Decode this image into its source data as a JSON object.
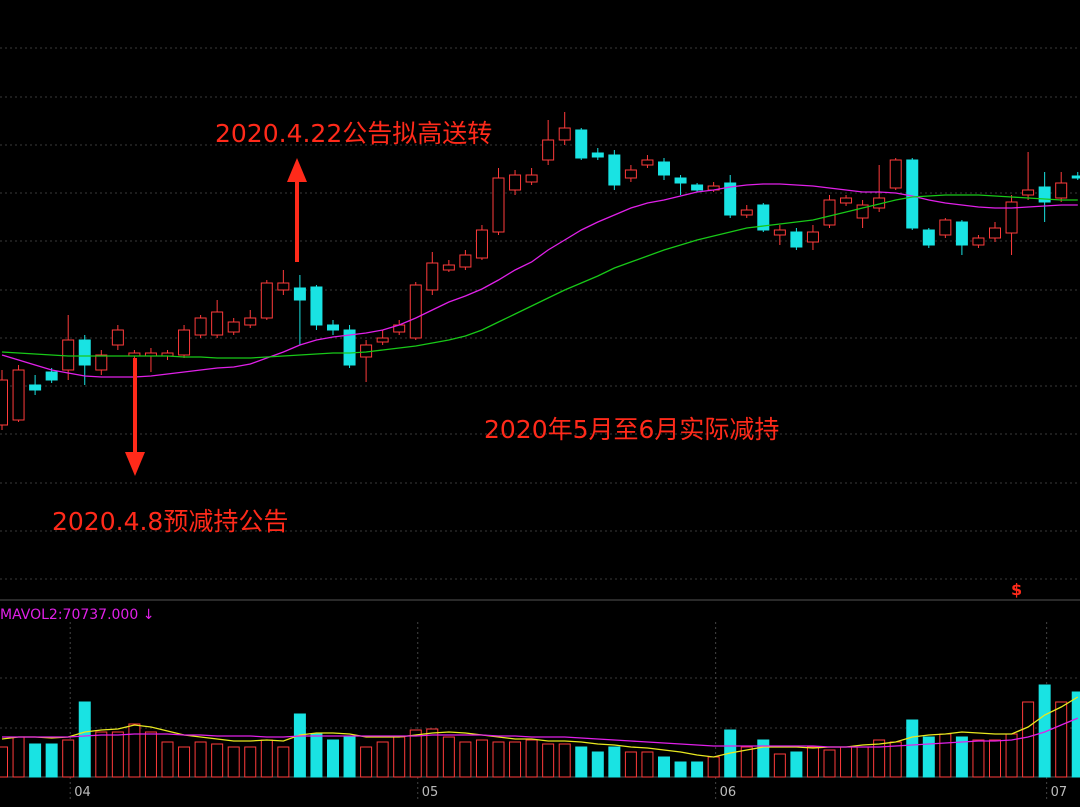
{
  "chart_data": {
    "type": "candlestick",
    "categories": [
      null,
      null,
      null,
      null,
      "04",
      null,
      null,
      null,
      null,
      null,
      null,
      null,
      null,
      null,
      null,
      null,
      null,
      null,
      null,
      null,
      null,
      null,
      null,
      null,
      null,
      "05",
      null,
      null,
      null,
      null,
      null,
      null,
      null,
      null,
      null,
      null,
      null,
      null,
      null,
      null,
      null,
      null,
      null,
      "06",
      null,
      null,
      null,
      null,
      null,
      null,
      null,
      null,
      null,
      null,
      null,
      null,
      null,
      null,
      null,
      null,
      null,
      null,
      null,
      "07",
      null,
      null
    ],
    "open": [
      17.5,
      18,
      21.5,
      22.8,
      23,
      26,
      23,
      25.5,
      24.4,
      24.4,
      24.4,
      24.5,
      26.5,
      26.5,
      26.8,
      27.5,
      28.2,
      31,
      31.2,
      31.3,
      27.5,
      27,
      24.3,
      25.8,
      26.8,
      26.2,
      31,
      33,
      33.3,
      34.2,
      36.8,
      41,
      41.8,
      44,
      46,
      47,
      44.7,
      44.5,
      42.2,
      43.5,
      43.8,
      42.2,
      41.5,
      41,
      41.7,
      38.5,
      39.5,
      36.5,
      36.8,
      35.8,
      37.5,
      39.7,
      38.2,
      39.2,
      41.2,
      44,
      37,
      36.5,
      37.8,
      35.5,
      36.2,
      36.7,
      40.5,
      41.3,
      40.2,
      42.4
    ],
    "high": [
      23,
      23.5,
      22.5,
      23.2,
      28.5,
      26.5,
      25,
      27.5,
      25,
      25.2,
      25,
      27.5,
      28.5,
      30,
      28.2,
      29,
      32,
      33,
      32.5,
      31.5,
      28,
      27.5,
      26,
      27,
      28,
      31.8,
      34.8,
      34,
      35,
      37.5,
      43.2,
      43,
      43.2,
      48,
      48.8,
      47.2,
      45.2,
      45,
      43.5,
      44.5,
      44.2,
      42.5,
      41.7,
      41.8,
      42.5,
      39.5,
      39.7,
      37.5,
      37.2,
      37.5,
      40.5,
      40.5,
      40,
      43.5,
      44.2,
      44.2,
      37.2,
      38.2,
      38,
      36.5,
      37.8,
      40.5,
      44.8,
      42.8,
      42.8,
      42.8
    ],
    "low": [
      17,
      17.8,
      20.5,
      21.7,
      22,
      21.5,
      22.5,
      25,
      22.5,
      22.8,
      24,
      24.2,
      26.2,
      26.2,
      26.5,
      27.2,
      28,
      30.5,
      25.5,
      27,
      26.5,
      23.2,
      21.8,
      25.5,
      26.5,
      26,
      30.5,
      32.8,
      33,
      34,
      36.5,
      40.5,
      41.5,
      43.5,
      45.5,
      44,
      44,
      41,
      41.8,
      43.2,
      42,
      40.5,
      40.8,
      40.8,
      38.2,
      38.2,
      36.8,
      35.5,
      35,
      35,
      37.2,
      39.4,
      37.2,
      38.8,
      41,
      37,
      35.2,
      36.2,
      34.5,
      35.2,
      35.8,
      34.5,
      40,
      37.8,
      39.8,
      42
    ],
    "close": [
      22,
      23,
      21,
      22,
      26,
      23.5,
      24.5,
      27,
      24.7,
      24.7,
      24.7,
      27,
      28.2,
      28.8,
      27.8,
      28.2,
      31.7,
      31.7,
      30,
      27.5,
      27,
      23.5,
      25.5,
      26.2,
      27.5,
      31.5,
      33.7,
      33.5,
      34.5,
      37,
      42.2,
      42.5,
      42.5,
      46,
      47.2,
      44.2,
      44.3,
      41.5,
      43,
      44,
      42.5,
      41.7,
      41,
      41.4,
      38.5,
      39,
      37,
      37,
      35.3,
      36.8,
      40,
      40.2,
      39.5,
      40.2,
      44,
      37.2,
      35.5,
      38,
      35.5,
      36.2,
      37.2,
      39.8,
      41,
      39.8,
      41.7,
      42.2
    ],
    "up_color": "#ff3b3b",
    "down_color": "#19e3e3",
    "ylim": [
      0,
      60
    ],
    "series": [
      {
        "color": "#e020e8",
        "values": [
          24.5,
          24,
          23.5,
          23,
          22.7,
          22.4,
          22.3,
          22.3,
          22.3,
          22.4,
          22.6,
          22.8,
          23,
          23.2,
          23.3,
          23.6,
          24.2,
          24.8,
          25.5,
          26,
          26.3,
          26.5,
          26.7,
          27,
          27.5,
          28.2,
          29,
          29.8,
          30.4,
          31.1,
          32,
          33,
          33.8,
          35,
          36,
          37,
          37.8,
          38.5,
          39.2,
          39.7,
          40,
          40.4,
          40.8,
          41,
          41.3,
          41.5,
          41.6,
          41.6,
          41.5,
          41.4,
          41.2,
          41,
          40.8,
          40.8,
          40.7,
          40.4,
          40,
          39.7,
          39.5,
          39.3,
          39.2,
          39.2,
          39.3,
          39.4,
          39.5,
          39.5
        ]
      },
      {
        "color": "#18c818",
        "values": [
          24.8,
          24.7,
          24.6,
          24.5,
          24.4,
          24.4,
          24.4,
          24.4,
          24.4,
          24.4,
          24.4,
          24.3,
          24.3,
          24.2,
          24.2,
          24.2,
          24.3,
          24.4,
          24.5,
          24.6,
          24.7,
          24.7,
          24.8,
          25,
          25.2,
          25.4,
          25.7,
          26,
          26.4,
          27,
          27.8,
          28.6,
          29.4,
          30.2,
          31,
          31.7,
          32.4,
          33.2,
          33.8,
          34.4,
          35,
          35.5,
          36,
          36.4,
          36.8,
          37.2,
          37.4,
          37.6,
          37.8,
          38,
          38.4,
          38.8,
          39.2,
          39.6,
          40,
          40.3,
          40.4,
          40.5,
          40.5,
          40.5,
          40.4,
          40.3,
          40.2,
          40.1,
          40,
          40
        ]
      }
    ],
    "annotations": [
      "2020.4.22公告拟高送转",
      "2020.4.8预减持公告",
      "2020年5月至6月实际减持"
    ],
    "marker": "$",
    "volume": {
      "indicator_label": "MAVOL2:70737.000 ↓",
      "ylim": [
        0,
        186000
      ],
      "values": [
        36000,
        48000,
        39600,
        39600,
        44400,
        90000,
        54000,
        54000,
        63600,
        54000,
        42000,
        36000,
        42000,
        39600,
        36000,
        36000,
        44400,
        36000,
        75600,
        51600,
        44400,
        48000,
        36000,
        42000,
        48000,
        56400,
        57600,
        48000,
        42000,
        44400,
        42000,
        42000,
        44400,
        39600,
        39600,
        36000,
        30000,
        36000,
        30000,
        30000,
        24000,
        18000,
        18000,
        24000,
        56400,
        36000,
        44400,
        27600,
        30000,
        36000,
        32400,
        36000,
        36000,
        44400,
        42000,
        68400,
        48000,
        51600,
        48000,
        44400,
        44400,
        51600,
        90000,
        110400,
        90000,
        102000
      ],
      "series": [
        {
          "color": "#e8e820",
          "values": [
            45600,
            48000,
            48000,
            46800,
            48000,
            54000,
            56400,
            57600,
            62400,
            60000,
            55200,
            50400,
            48000,
            45600,
            43200,
            43200,
            44400,
            43200,
            50400,
            52800,
            52800,
            51600,
            48000,
            48000,
            48000,
            50400,
            52800,
            54000,
            52800,
            50400,
            48000,
            45600,
            45600,
            43200,
            43200,
            42000,
            39600,
            38400,
            36000,
            34800,
            32400,
            30000,
            26400,
            24000,
            28800,
            32400,
            36000,
            36000,
            36000,
            34800,
            36000,
            36000,
            38400,
            39600,
            42000,
            48000,
            50400,
            51600,
            54000,
            52800,
            51600,
            51600,
            60000,
            74400,
            84000,
            96000
          ]
        },
        {
          "color": "#e020e8",
          "values": [
            48000,
            48000,
            48000,
            48000,
            48000,
            49200,
            50400,
            50400,
            51600,
            51600,
            51600,
            50400,
            50400,
            49200,
            49200,
            49200,
            48000,
            48000,
            49200,
            49200,
            49200,
            49200,
            49200,
            49200,
            49200,
            49200,
            50400,
            50400,
            50400,
            50400,
            49200,
            49200,
            48000,
            48000,
            48000,
            46800,
            45600,
            44400,
            43200,
            42000,
            40800,
            39600,
            38400,
            37200,
            37200,
            37200,
            37200,
            37200,
            37200,
            37200,
            36000,
            36000,
            36000,
            36000,
            37200,
            38400,
            39600,
            40800,
            42000,
            43200,
            43200,
            44400,
            48000,
            54000,
            62400,
            70737
          ]
        }
      ]
    }
  }
}
